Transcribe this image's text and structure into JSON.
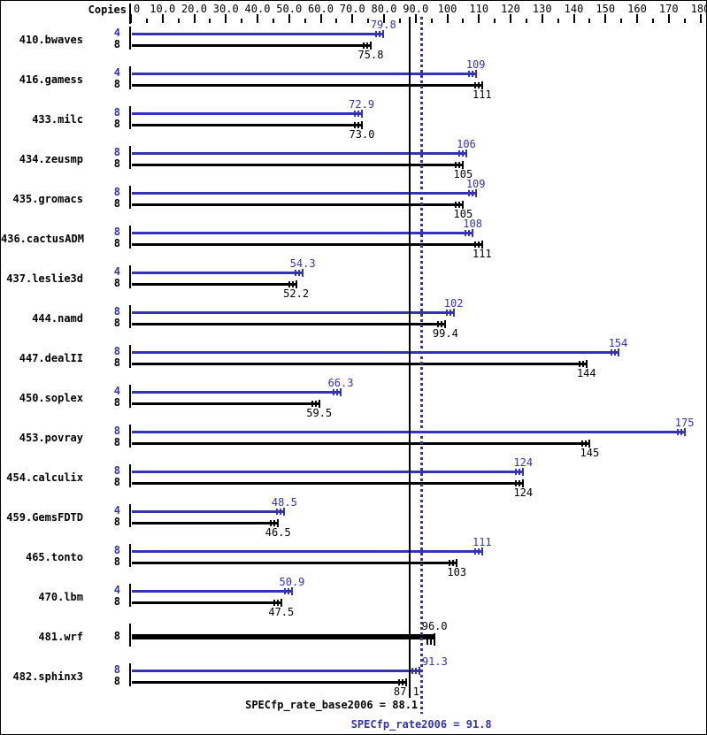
{
  "header": {
    "copies_label": "Copies"
  },
  "axis": {
    "min": 0,
    "max": 180,
    "major_step": 10,
    "minor_step": 5,
    "tick_labels": [
      "0",
      "10.0",
      "20.0",
      "30.0",
      "40.0",
      "50.0",
      "60.0",
      "70.0",
      "80.0",
      "90.0",
      "100",
      "110",
      "120",
      "130",
      "140",
      "150",
      "160",
      "170",
      "180"
    ]
  },
  "summary": {
    "base": {
      "label": "SPECfp_rate_base2006 = 88.1",
      "value": 88.1
    },
    "peak": {
      "label": "SPECfp_rate2006 = 91.8",
      "value": 91.8
    }
  },
  "colors": {
    "peak_blue": "#3333b4",
    "base_black": "#000000",
    "background": "#ffffff"
  },
  "chart_data": {
    "type": "bar",
    "orientation": "horizontal",
    "xlim": [
      0,
      180
    ],
    "grid": false,
    "series": [
      "peak",
      "base"
    ],
    "benchmarks": [
      {
        "name": "410.bwaves",
        "peak_copies": "4",
        "base_copies": "8",
        "peak": 79.8,
        "base": 75.8,
        "peak_label": "79.8",
        "base_label": "75.8"
      },
      {
        "name": "416.gamess",
        "peak_copies": "4",
        "base_copies": "8",
        "peak": 109,
        "base": 111,
        "peak_label": "109",
        "base_label": "111"
      },
      {
        "name": "433.milc",
        "peak_copies": "8",
        "base_copies": "8",
        "peak": 72.9,
        "base": 73.0,
        "peak_label": "72.9",
        "base_label": "73.0"
      },
      {
        "name": "434.zeusmp",
        "peak_copies": "8",
        "base_copies": "8",
        "peak": 106,
        "base": 105,
        "peak_label": "106",
        "base_label": "105"
      },
      {
        "name": "435.gromacs",
        "peak_copies": "8",
        "base_copies": "8",
        "peak": 109,
        "base": 105,
        "peak_label": "109",
        "base_label": "105"
      },
      {
        "name": "436.cactusADM",
        "peak_copies": "8",
        "base_copies": "8",
        "peak": 108,
        "base": 111,
        "peak_label": "108",
        "base_label": "111"
      },
      {
        "name": "437.leslie3d",
        "peak_copies": "4",
        "base_copies": "8",
        "peak": 54.3,
        "base": 52.2,
        "peak_label": "54.3",
        "base_label": "52.2"
      },
      {
        "name": "444.namd",
        "peak_copies": "8",
        "base_copies": "8",
        "peak": 102,
        "base": 99.4,
        "peak_label": "102",
        "base_label": "99.4"
      },
      {
        "name": "447.dealII",
        "peak_copies": "8",
        "base_copies": "8",
        "peak": 154,
        "base": 144,
        "peak_label": "154",
        "base_label": "144"
      },
      {
        "name": "450.soplex",
        "peak_copies": "4",
        "base_copies": "8",
        "peak": 66.3,
        "base": 59.5,
        "peak_label": "66.3",
        "base_label": "59.5"
      },
      {
        "name": "453.povray",
        "peak_copies": "8",
        "base_copies": "8",
        "peak": 175,
        "base": 145,
        "peak_label": "175",
        "base_label": "145"
      },
      {
        "name": "454.calculix",
        "peak_copies": "8",
        "base_copies": "8",
        "peak": 124,
        "base": 124,
        "peak_label": "124",
        "base_label": "124"
      },
      {
        "name": "459.GemsFDTD",
        "peak_copies": "4",
        "base_copies": "8",
        "peak": 48.5,
        "base": 46.5,
        "peak_label": "48.5",
        "base_label": "46.5"
      },
      {
        "name": "465.tonto",
        "peak_copies": "8",
        "base_copies": "8",
        "peak": 111,
        "base": 103,
        "peak_label": "111",
        "base_label": "103"
      },
      {
        "name": "470.lbm",
        "peak_copies": "4",
        "base_copies": "8",
        "peak": 50.9,
        "base": 47.5,
        "peak_label": "50.9",
        "base_label": "47.5"
      },
      {
        "name": "481.wrf",
        "single": true,
        "base_copies": "8",
        "base": 96.0,
        "base_label": "96.0"
      },
      {
        "name": "482.sphinx3",
        "peak_copies": "8",
        "base_copies": "8",
        "peak": 91.3,
        "base": 87.1,
        "peak_label": "91.3",
        "base_label": "87.1",
        "peak_label_dx": 17
      }
    ]
  }
}
